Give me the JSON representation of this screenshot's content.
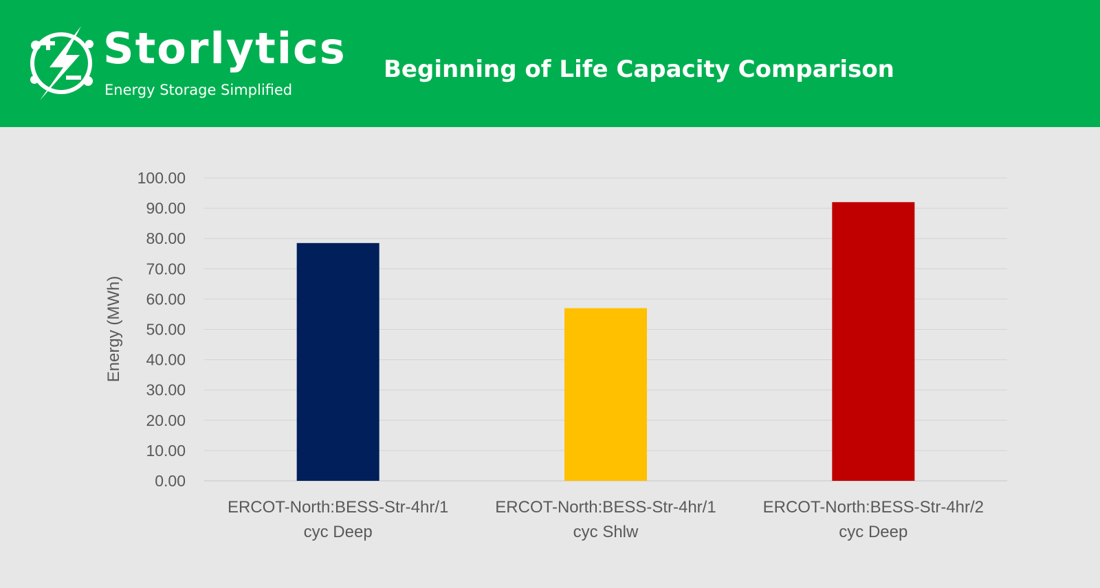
{
  "header": {
    "brand_name": "Storlytics",
    "brand_tagline": "Energy Storage Simplified",
    "chart_title": "Beginning of Life Capacity Comparison",
    "logo_icon": "battery-lightning-icon",
    "colors": {
      "header_bg": "#00b050",
      "page_bg": "#e7e7e7",
      "text": "#ffffff"
    }
  },
  "chart_data": {
    "type": "bar",
    "title": "Beginning of Life Capacity Comparison",
    "xlabel": "",
    "ylabel": "Energy (MWh)",
    "ylim": [
      0,
      100
    ],
    "ytick_step": 10,
    "tick_labels": [
      "0.00",
      "10.00",
      "20.00",
      "30.00",
      "40.00",
      "50.00",
      "60.00",
      "70.00",
      "80.00",
      "90.00",
      "100.00"
    ],
    "categories": [
      [
        "ERCOT-North:BESS-Str-4hr/1",
        "cyc Deep"
      ],
      [
        "ERCOT-North:BESS-Str-4hr/1",
        "cyc Shlw"
      ],
      [
        "ERCOT-North:BESS-Str-4hr/2",
        "cyc Deep"
      ]
    ],
    "values": [
      78.5,
      57.0,
      92.0
    ],
    "colors": [
      "#001f5b",
      "#ffc000",
      "#c00000"
    ],
    "grid": true,
    "legend": "none"
  }
}
